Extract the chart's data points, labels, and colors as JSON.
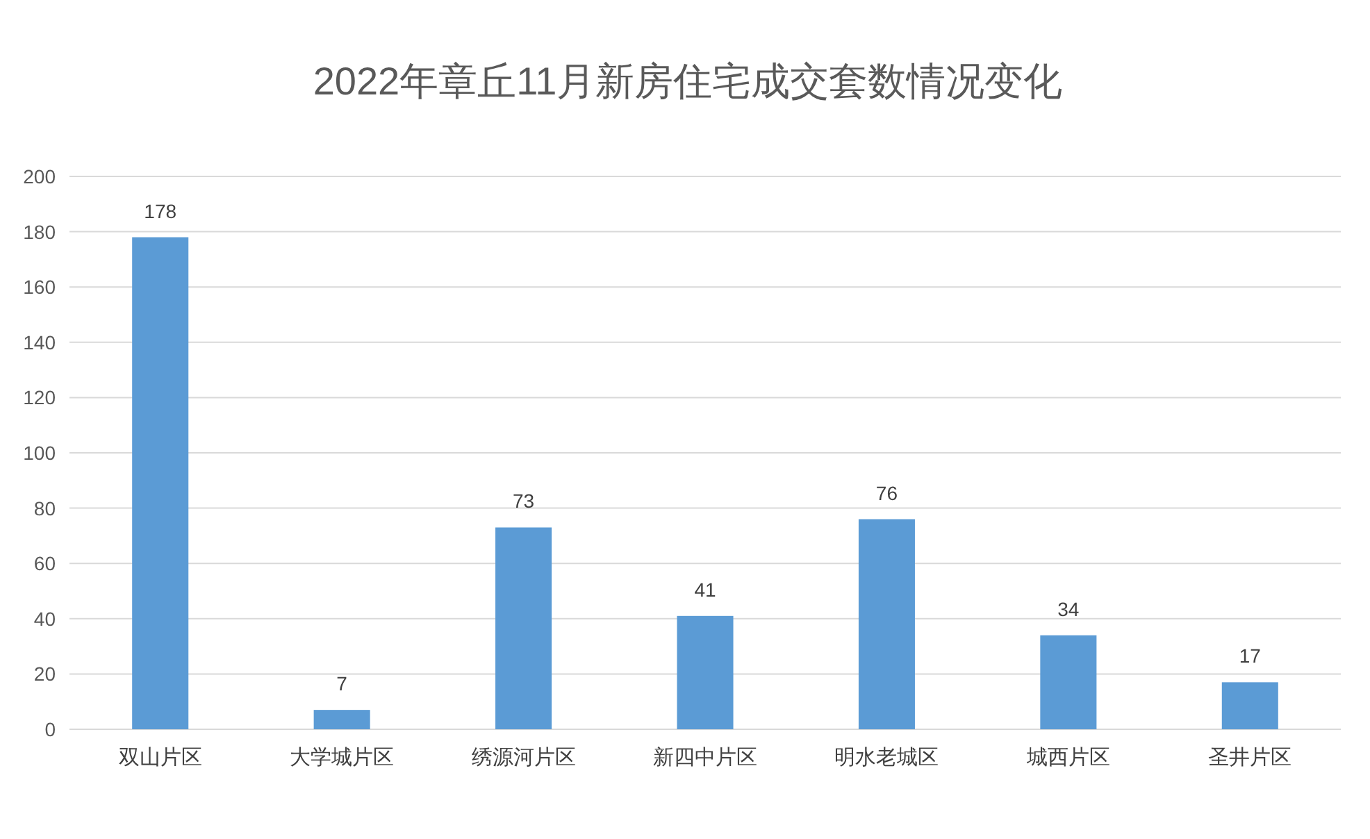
{
  "chart_data": {
    "type": "bar",
    "title": "2022年章丘11月新房住宅成交套数情况变化",
    "categories": [
      "双山片区",
      "大学城片区",
      "绣源河片区",
      "新四中片区",
      "明水老城区",
      "城西片区",
      "圣井片区"
    ],
    "values": [
      178,
      7,
      73,
      41,
      76,
      34,
      17
    ],
    "color": "#5b9bd5",
    "ylim": [
      0,
      200
    ],
    "yticks": [
      0,
      20,
      40,
      60,
      80,
      100,
      120,
      140,
      160,
      180,
      200
    ],
    "grid": "y",
    "data_labels": true
  }
}
